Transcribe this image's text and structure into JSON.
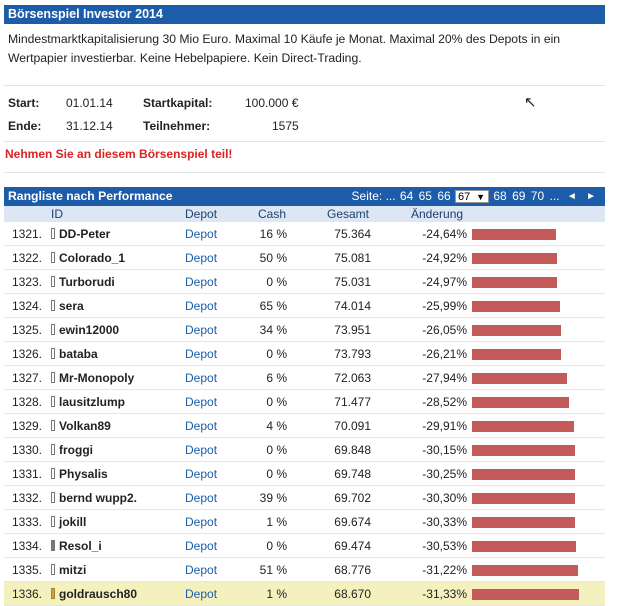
{
  "game": {
    "title": "Börsenspiel Investor 2014",
    "description": "Mindestmarktkapitalisierung 30 Mio Euro. Maximal 10 Käufe je Monat. Maximal 20% des Depots in ein Wertpapier investierbar. Keine Hebelpapiere. Kein Direct-Trading.",
    "start_label": "Start:",
    "start_value": "01.01.14",
    "end_label": "Ende:",
    "end_value": "31.12.14",
    "capital_label": "Startkapital:",
    "capital_value": "100.000 €",
    "participants_label": "Teilnehmer:",
    "participants_value": "1575",
    "join_link": "Nehmen Sie an diesem Börsenspiel teil!"
  },
  "ranking": {
    "title": "Rangliste nach Performance",
    "pager": {
      "label": "Seite: ...",
      "pages_before": [
        "64",
        "65",
        "66"
      ],
      "current": "67",
      "pages_after": [
        "68",
        "69",
        "70"
      ],
      "ellipsis": "...",
      "prev_icon": "◄",
      "next_icon": "►",
      "dropdown_icon": "▼"
    },
    "columns": {
      "id": "ID",
      "depot": "Depot",
      "cash": "Cash",
      "gesamt": "Gesamt",
      "change": "Änderung"
    },
    "bar_color": "#c45a5a",
    "highlight_color": "#f5f1bf",
    "rows": [
      {
        "rank": "1321.",
        "name": "DD-Peter",
        "depot": "Depot",
        "cash": "16 %",
        "total": "75.364",
        "change": "-24,64%",
        "change_value": -24.64,
        "badge": "white",
        "highlight": false
      },
      {
        "rank": "1322.",
        "name": "Colorado_1",
        "depot": "Depot",
        "cash": "50 %",
        "total": "75.081",
        "change": "-24,92%",
        "change_value": -24.92,
        "badge": "white",
        "highlight": false
      },
      {
        "rank": "1323.",
        "name": "Turborudi",
        "depot": "Depot",
        "cash": "0 %",
        "total": "75.031",
        "change": "-24,97%",
        "change_value": -24.97,
        "badge": "white",
        "highlight": false
      },
      {
        "rank": "1324.",
        "name": "sera",
        "depot": "Depot",
        "cash": "65 %",
        "total": "74.014",
        "change": "-25,99%",
        "change_value": -25.99,
        "badge": "white",
        "highlight": false
      },
      {
        "rank": "1325.",
        "name": "ewin12000",
        "depot": "Depot",
        "cash": "34 %",
        "total": "73.951",
        "change": "-26,05%",
        "change_value": -26.05,
        "badge": "white",
        "highlight": false
      },
      {
        "rank": "1326.",
        "name": "bataba",
        "depot": "Depot",
        "cash": "0 %",
        "total": "73.793",
        "change": "-26,21%",
        "change_value": -26.21,
        "badge": "white",
        "highlight": false
      },
      {
        "rank": "1327.",
        "name": "Mr-Monopoly",
        "depot": "Depot",
        "cash": "6 %",
        "total": "72.063",
        "change": "-27,94%",
        "change_value": -27.94,
        "badge": "white",
        "highlight": false
      },
      {
        "rank": "1328.",
        "name": "lausitzlump",
        "depot": "Depot",
        "cash": "0 %",
        "total": "71.477",
        "change": "-28,52%",
        "change_value": -28.52,
        "badge": "white",
        "highlight": false
      },
      {
        "rank": "1329.",
        "name": "Volkan89",
        "depot": "Depot",
        "cash": "4 %",
        "total": "70.091",
        "change": "-29,91%",
        "change_value": -29.91,
        "badge": "white",
        "highlight": false
      },
      {
        "rank": "1330.",
        "name": "froggi",
        "depot": "Depot",
        "cash": "0 %",
        "total": "69.848",
        "change": "-30,15%",
        "change_value": -30.15,
        "badge": "white",
        "highlight": false
      },
      {
        "rank": "1331.",
        "name": "Physalis",
        "depot": "Depot",
        "cash": "0 %",
        "total": "69.748",
        "change": "-30,25%",
        "change_value": -30.25,
        "badge": "white",
        "highlight": false
      },
      {
        "rank": "1332.",
        "name": "bernd wupp2.",
        "depot": "Depot",
        "cash": "39 %",
        "total": "69.702",
        "change": "-30,30%",
        "change_value": -30.3,
        "badge": "white",
        "highlight": false
      },
      {
        "rank": "1333.",
        "name": "jokill",
        "depot": "Depot",
        "cash": "1 %",
        "total": "69.674",
        "change": "-30,33%",
        "change_value": -30.33,
        "badge": "white",
        "highlight": false
      },
      {
        "rank": "1334.",
        "name": "Resol_i",
        "depot": "Depot",
        "cash": "0 %",
        "total": "69.474",
        "change": "-30,53%",
        "change_value": -30.53,
        "badge": "dark",
        "highlight": false
      },
      {
        "rank": "1335.",
        "name": "mitzi",
        "depot": "Depot",
        "cash": "51 %",
        "total": "68.776",
        "change": "-31,22%",
        "change_value": -31.22,
        "badge": "white",
        "highlight": false
      },
      {
        "rank": "1336.",
        "name": "goldrausch80",
        "depot": "Depot",
        "cash": "1 %",
        "total": "68.670",
        "change": "-31,33%",
        "change_value": -31.33,
        "badge": "gold",
        "highlight": true
      }
    ]
  },
  "cursor_icon": "mouse-pointer-icon"
}
